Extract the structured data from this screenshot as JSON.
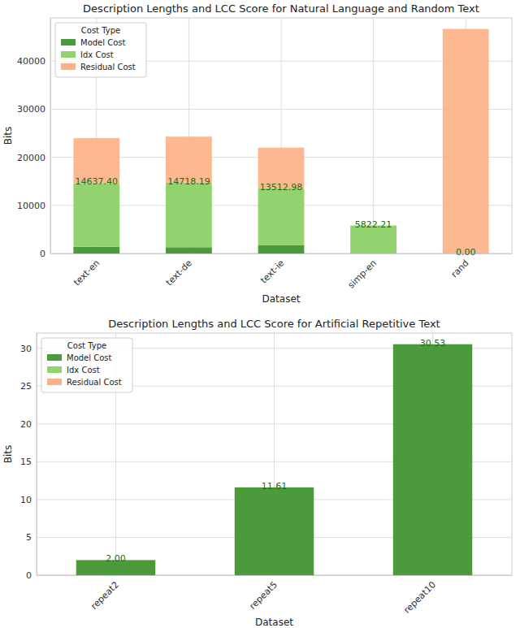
{
  "chart_data": [
    {
      "type": "bar",
      "title": "Description Lengths and LCC Score for Natural Language and Random Text",
      "x_label": "Dataset",
      "y_label": "Bits",
      "categories": [
        "text-en",
        "text-de",
        "text-ie",
        "simp-en",
        "rand"
      ],
      "series": [
        {
          "name": "Model Cost",
          "color": "#4c9a3c",
          "values": [
            1400,
            1300,
            1700,
            0,
            0
          ]
        },
        {
          "name": "Idx Cost",
          "color": "#93d36f",
          "values": [
            13240,
            13420,
            11810,
            5822,
            0
          ]
        },
        {
          "name": "Residual Cost",
          "color": "#fbb085",
          "values": [
            9360,
            9580,
            8500,
            0,
            46700
          ]
        }
      ],
      "scores": [
        14637.4,
        14718.19,
        13512.98,
        5822.21,
        0.0
      ],
      "score_labels": [
        "14637.40",
        "14718.19",
        "13512.98",
        "5822.21",
        "0.00"
      ],
      "stacked": true,
      "grid": true,
      "legend": "upper left",
      "legend_title": "Cost Type",
      "ylim": [
        0,
        49000
      ],
      "yticks": [
        0,
        10000,
        20000,
        30000,
        40000
      ]
    },
    {
      "type": "bar",
      "title": "Description Lengths and LCC Score for Artificial Repetitive Text",
      "x_label": "Dataset",
      "y_label": "Bits",
      "categories": [
        "repeat2",
        "repeat5",
        "repeat10"
      ],
      "series": [
        {
          "name": "Model Cost",
          "color": "#4c9a3c",
          "values": [
            2.0,
            11.61,
            30.53
          ]
        },
        {
          "name": "Idx Cost",
          "color": "#93d36f",
          "values": [
            0,
            0,
            0
          ]
        },
        {
          "name": "Residual Cost",
          "color": "#fbb085",
          "values": [
            0,
            0,
            0
          ]
        }
      ],
      "scores": [
        2.0,
        11.61,
        30.53
      ],
      "score_labels": [
        "2.00",
        "11.61",
        "30.53"
      ],
      "stacked": true,
      "grid": true,
      "legend": "upper left",
      "legend_title": "Cost Type",
      "ylim": [
        0,
        32
      ],
      "yticks": [
        0,
        5,
        10,
        15,
        20,
        25,
        30
      ]
    }
  ]
}
